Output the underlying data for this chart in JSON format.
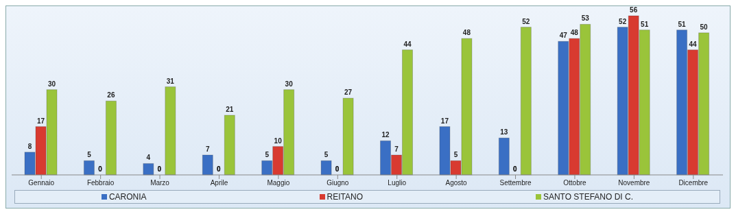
{
  "chart_data": {
    "type": "bar",
    "categories": [
      "Gennaio",
      "Febbraio",
      "Marzo",
      "Aprile",
      "Maggio",
      "Giugno",
      "Luglio",
      "Agosto",
      "Settembre",
      "Ottobre",
      "Novembre",
      "Dicembre"
    ],
    "series": [
      {
        "name": "CARONIA",
        "color": "#3a6fc4",
        "values": [
          8,
          5,
          4,
          7,
          5,
          5,
          12,
          17,
          13,
          47,
          52,
          51
        ]
      },
      {
        "name": "REITANO",
        "color": "#d83a30",
        "values": [
          17,
          0,
          0,
          0,
          10,
          0,
          7,
          5,
          0,
          48,
          56,
          44
        ]
      },
      {
        "name": "SANTO STEFANO DI C.",
        "color": "#9ac43a",
        "values": [
          30,
          26,
          31,
          21,
          30,
          27,
          44,
          48,
          52,
          53,
          51,
          50
        ]
      }
    ],
    "data_labels": true,
    "legend": "bottom",
    "grid": false
  }
}
